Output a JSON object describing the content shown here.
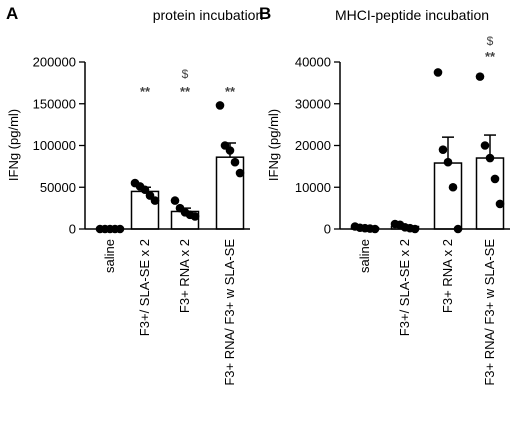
{
  "chart_data": [
    {
      "type": "bar",
      "panel": "A",
      "title": "protein incubation",
      "ylabel": "IFNg (pg/ml)",
      "xlabel": "",
      "ylim": [
        0,
        200000
      ],
      "yticks": [
        "0",
        "50000",
        "100000",
        "150000",
        "200000"
      ],
      "ytick_values": [
        0,
        50000,
        100000,
        150000,
        200000
      ],
      "categories": [
        "saline",
        "F3+/ SLA-SE x 2",
        "F3+ RNA x 2",
        "F3+ RNA/ F3+ w SLA-SE"
      ],
      "values": [
        0,
        45000,
        21000,
        86000
      ],
      "error": [
        0,
        5000,
        4000,
        17000
      ],
      "points": [
        [
          0,
          0,
          0,
          0,
          0
        ],
        [
          55000,
          51000,
          47000,
          40000,
          34000
        ],
        [
          34000,
          25000,
          20000,
          17000,
          15000
        ],
        [
          148000,
          100000,
          94000,
          80000,
          67000
        ]
      ],
      "significance": [
        "",
        "**",
        "**",
        "**"
      ],
      "dollar": [
        "",
        "",
        "$",
        ""
      ],
      "colors": {
        "bar_fill": "#ffffff",
        "bar_edge": "#000000",
        "point": "#000000",
        "sig": "#444444"
      }
    },
    {
      "type": "bar",
      "panel": "B",
      "title": "MHCI-peptide incubation",
      "ylabel": "IFNg (pg/ml)",
      "xlabel": "",
      "ylim": [
        0,
        40000
      ],
      "yticks": [
        "0",
        "10000",
        "20000",
        "30000",
        "40000"
      ],
      "ytick_values": [
        0,
        10000,
        20000,
        30000,
        40000
      ],
      "categories": [
        "saline",
        "F3+/ SLA-SE x 2",
        "F3+ RNA x 2",
        "F3+ RNA/ F3+ w SLA-SE"
      ],
      "values": [
        300,
        600,
        15800,
        17000
      ],
      "error": [
        200,
        300,
        6200,
        5500
      ],
      "points": [
        [
          600,
          300,
          200,
          100,
          0
        ],
        [
          1200,
          1000,
          400,
          200,
          0
        ],
        [
          37500,
          19000,
          16000,
          10000,
          0
        ],
        [
          36500,
          20000,
          17000,
          12000,
          6000
        ]
      ],
      "significance": [
        "",
        "",
        "",
        "**"
      ],
      "dollar": [
        "",
        "",
        "",
        "$"
      ],
      "colors": {
        "bar_fill": "#ffffff",
        "bar_edge": "#000000",
        "point": "#000000",
        "sig": "#444444"
      }
    }
  ]
}
